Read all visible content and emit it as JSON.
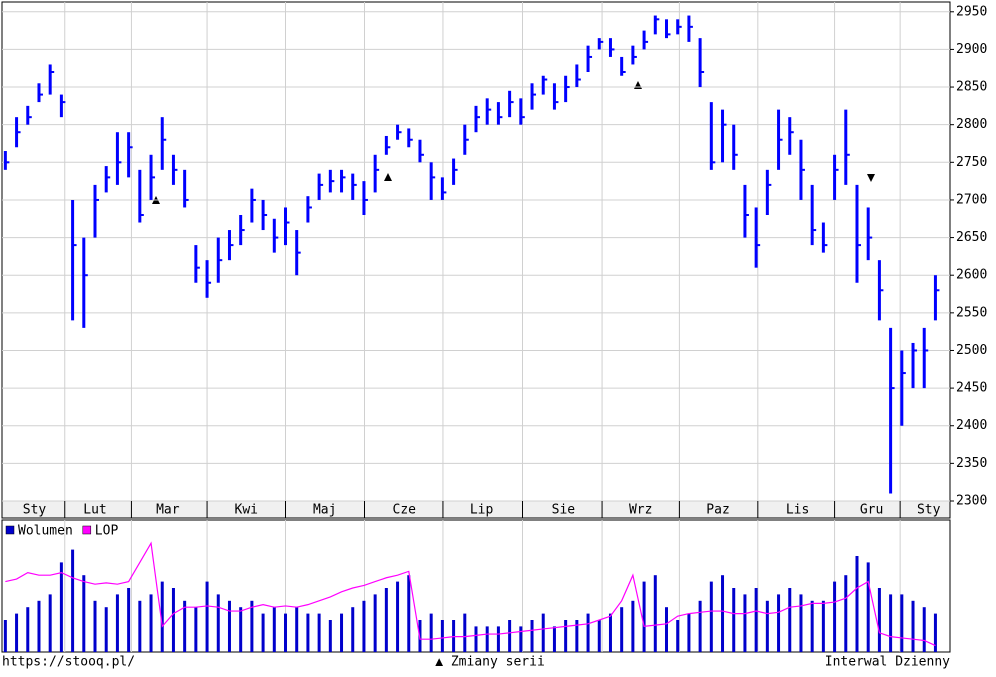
{
  "chart_data": {
    "type": "ohlc",
    "color": "#0000ff",
    "x": [
      0,
      1,
      2,
      3,
      4,
      5,
      6,
      7,
      8,
      9,
      10,
      11,
      12,
      13,
      14,
      15,
      16,
      17,
      18,
      19,
      20,
      21,
      22,
      23,
      24,
      25,
      26,
      27,
      28,
      29,
      30,
      31,
      32,
      33,
      34,
      35,
      36,
      37,
      38,
      39,
      40,
      41,
      42,
      43,
      44,
      45,
      46,
      47,
      48,
      49,
      50,
      51,
      52,
      53,
      54,
      55,
      56,
      57,
      58,
      59,
      60,
      61,
      62,
      63,
      64,
      65,
      66,
      67,
      68,
      69,
      70,
      71,
      72,
      73,
      74,
      75,
      76,
      77,
      78,
      79,
      80,
      81,
      82,
      83
    ],
    "high": [
      2765,
      2810,
      2825,
      2855,
      2880,
      2840,
      2700,
      2650,
      2720,
      2745,
      2790,
      2790,
      2740,
      2760,
      2810,
      2760,
      2740,
      2640,
      2620,
      2650,
      2660,
      2680,
      2715,
      2700,
      2675,
      2690,
      2660,
      2705,
      2735,
      2740,
      2740,
      2735,
      2725,
      2760,
      2785,
      2800,
      2795,
      2780,
      2750,
      2730,
      2755,
      2800,
      2825,
      2835,
      2830,
      2845,
      2835,
      2855,
      2865,
      2855,
      2865,
      2880,
      2905,
      2915,
      2915,
      2890,
      2905,
      2925,
      2945,
      2940,
      2940,
      2945,
      2915,
      2830,
      2820,
      2800,
      2720,
      2690,
      2740,
      2820,
      2810,
      2780,
      2720,
      2670,
      2760,
      2820,
      2720,
      2690,
      2620,
      2530,
      2500,
      2510,
      2530,
      2600
    ],
    "low": [
      2740,
      2770,
      2800,
      2830,
      2840,
      2810,
      2540,
      2530,
      2650,
      2710,
      2720,
      2730,
      2670,
      2700,
      2740,
      2720,
      2690,
      2590,
      2570,
      2590,
      2620,
      2640,
      2670,
      2660,
      2630,
      2640,
      2600,
      2670,
      2700,
      2710,
      2710,
      2700,
      2680,
      2710,
      2760,
      2780,
      2770,
      2750,
      2700,
      2700,
      2720,
      2760,
      2790,
      2800,
      2800,
      2810,
      2800,
      2820,
      2840,
      2820,
      2830,
      2850,
      2870,
      2900,
      2890,
      2865,
      2880,
      2900,
      2920,
      2915,
      2920,
      2910,
      2850,
      2740,
      2750,
      2740,
      2650,
      2610,
      2680,
      2740,
      2760,
      2700,
      2640,
      2630,
      2700,
      2720,
      2590,
      2620,
      2540,
      2310,
      2400,
      2450,
      2450,
      2540
    ],
    "close": [
      2750,
      2790,
      2810,
      2840,
      2870,
      2830,
      2640,
      2600,
      2700,
      2730,
      2750,
      2770,
      2680,
      2730,
      2780,
      2740,
      2700,
      2610,
      2590,
      2620,
      2640,
      2660,
      2700,
      2680,
      2650,
      2670,
      2630,
      2690,
      2720,
      2725,
      2730,
      2720,
      2700,
      2740,
      2770,
      2790,
      2780,
      2760,
      2730,
      2710,
      2740,
      2780,
      2810,
      2820,
      2810,
      2830,
      2810,
      2840,
      2860,
      2830,
      2850,
      2860,
      2890,
      2910,
      2900,
      2870,
      2890,
      2910,
      2940,
      2920,
      2930,
      2930,
      2870,
      2750,
      2800,
      2760,
      2680,
      2640,
      2720,
      2780,
      2790,
      2740,
      2660,
      2640,
      2740,
      2760,
      2640,
      2650,
      2580,
      2450,
      2470,
      2500,
      2500,
      2580
    ],
    "xlim": [
      -0.3,
      84.3
    ],
    "ylim": [
      2300,
      2963
    ],
    "yticks": [
      2300,
      2350,
      2400,
      2450,
      2500,
      2550,
      2600,
      2650,
      2700,
      2750,
      2800,
      2850,
      2900,
      2950
    ],
    "xticks": [
      {
        "value": 2.6,
        "label": "Sty"
      },
      {
        "value": 8.0,
        "label": "Lut"
      },
      {
        "value": 14.5,
        "label": "Mar"
      },
      {
        "value": 21.5,
        "label": "Kwi"
      },
      {
        "value": 28.5,
        "label": "Maj"
      },
      {
        "value": 35.6,
        "label": "Cze"
      },
      {
        "value": 42.5,
        "label": "Lip"
      },
      {
        "value": 49.8,
        "label": "Sie"
      },
      {
        "value": 56.7,
        "label": "Wrz"
      },
      {
        "value": 63.6,
        "label": "Paz"
      },
      {
        "value": 70.7,
        "label": "Lis"
      },
      {
        "value": 77.3,
        "label": "Gru"
      },
      {
        "value": 82.4,
        "label": "Sty"
      }
    ],
    "grid": true,
    "volume": {
      "ylim": [
        0,
        100
      ],
      "series": [
        {
          "name": "Wolumen",
          "color": "#0000cc",
          "values": [
            25,
            30,
            35,
            40,
            45,
            70,
            80,
            60,
            40,
            35,
            45,
            50,
            40,
            45,
            55,
            50,
            40,
            35,
            55,
            45,
            40,
            35,
            40,
            30,
            35,
            30,
            35,
            30,
            30,
            25,
            30,
            35,
            40,
            45,
            50,
            55,
            60,
            25,
            30,
            25,
            25,
            30,
            20,
            20,
            20,
            25,
            20,
            25,
            30,
            20,
            25,
            25,
            30,
            25,
            30,
            35,
            40,
            55,
            60,
            35,
            25,
            30,
            40,
            55,
            60,
            50,
            45,
            50,
            40,
            45,
            50,
            45,
            40,
            40,
            55,
            60,
            75,
            70,
            50,
            45,
            45,
            40,
            35,
            30
          ]
        },
        {
          "name": "LOP",
          "color": "#ff00ff",
          "values": [
            55,
            57,
            62,
            60,
            60,
            62,
            58,
            55,
            53,
            54,
            53,
            55,
            70,
            85,
            20,
            30,
            35,
            35,
            36,
            35,
            32,
            32,
            35,
            37,
            35,
            36,
            35,
            37,
            40,
            43,
            47,
            50,
            52,
            55,
            58,
            60,
            63,
            10,
            10,
            11,
            12,
            12,
            13,
            14,
            14,
            15,
            16,
            17,
            18,
            19,
            20,
            21,
            22,
            25,
            28,
            40,
            60,
            20,
            21,
            22,
            28,
            30,
            31,
            32,
            32,
            30,
            30,
            32,
            30,
            31,
            35,
            36,
            38,
            38,
            39,
            42,
            50,
            55,
            15,
            12,
            11,
            10,
            9,
            5
          ]
        }
      ]
    }
  },
  "footer": {
    "source": "https://stooq.pl/",
    "note": "▲ Zmiany serii",
    "interval": "Interwal Dzienny"
  }
}
